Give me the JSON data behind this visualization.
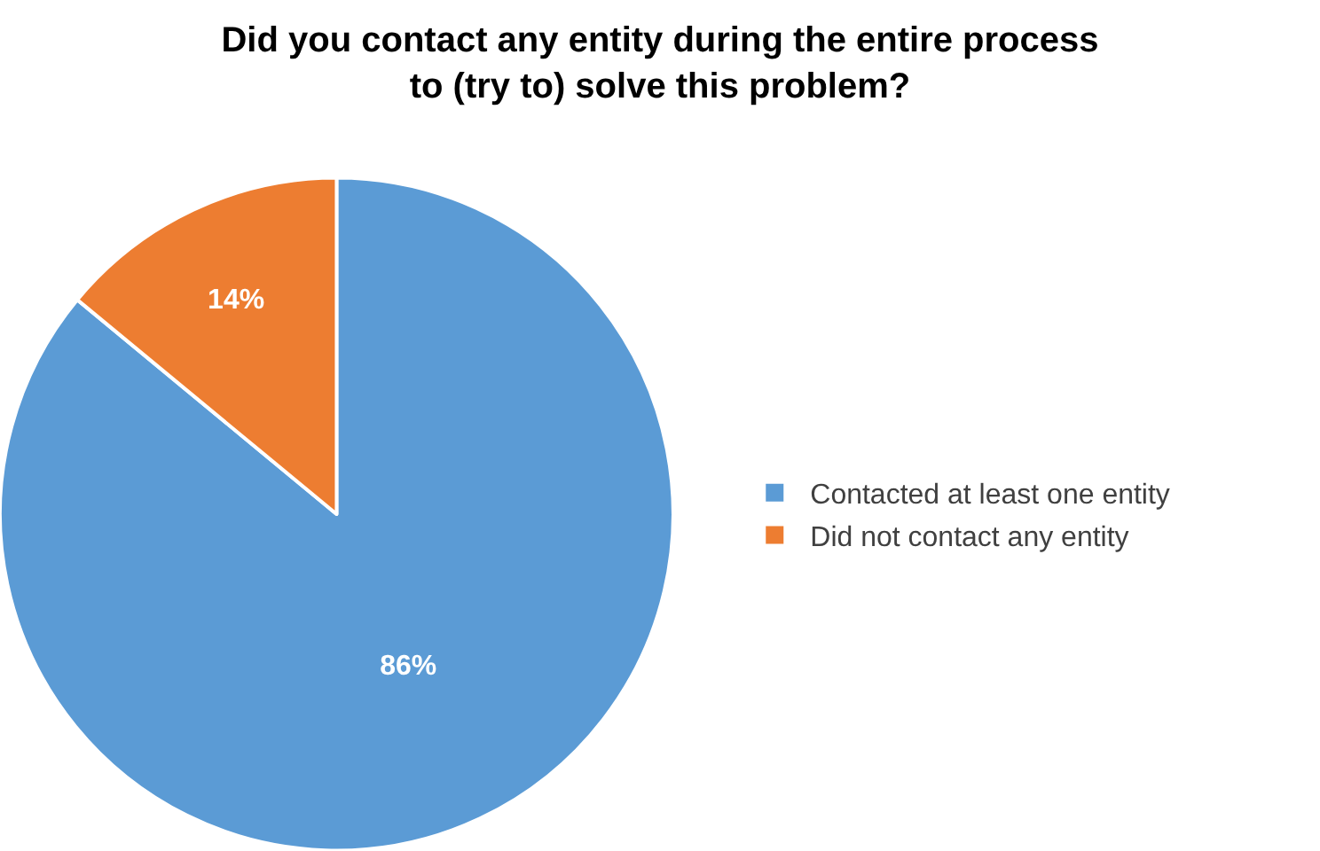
{
  "chart_data": {
    "type": "pie",
    "title": "Did you contact any entity during the entire process\nto (try to) solve this problem?",
    "categories": [
      "Contacted at least one entity",
      "Did not contact any entity"
    ],
    "values": [
      86,
      14
    ],
    "colors": [
      "#5b9bd5",
      "#ed7d31"
    ],
    "value_labels": [
      "86%",
      "14%"
    ],
    "legend": "right"
  }
}
